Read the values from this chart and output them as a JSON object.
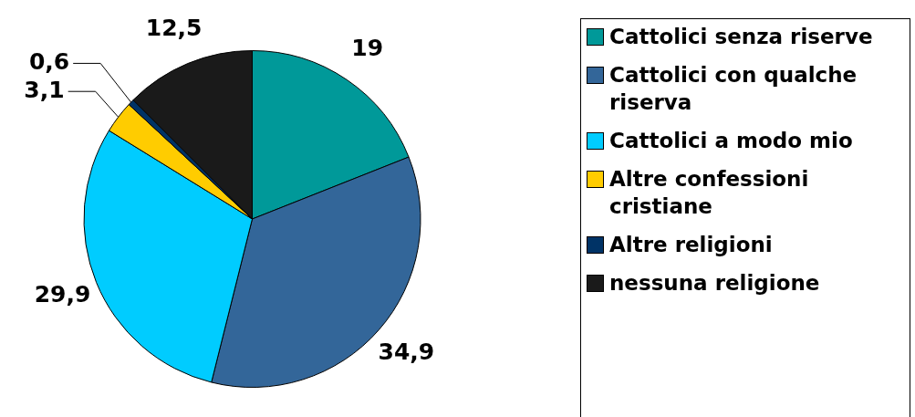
{
  "chart_data": {
    "type": "pie",
    "categories": [
      "Cattolici senza riserve",
      "Cattolici con qualche riserva",
      "Cattolici a modo mio",
      "Altre confessioni cristiane",
      "Altre religioni",
      "nessuna religione"
    ],
    "values": [
      19,
      34.9,
      29.9,
      3.1,
      0.6,
      12.5
    ],
    "value_labels": [
      "19",
      "34,9",
      "29,9",
      "3,1",
      "0,6",
      "12,5"
    ],
    "colors": [
      "#009999",
      "#336699",
      "#00ccff",
      "#ffcc00",
      "#003366",
      "#1a1a1a"
    ],
    "legend": "right"
  }
}
